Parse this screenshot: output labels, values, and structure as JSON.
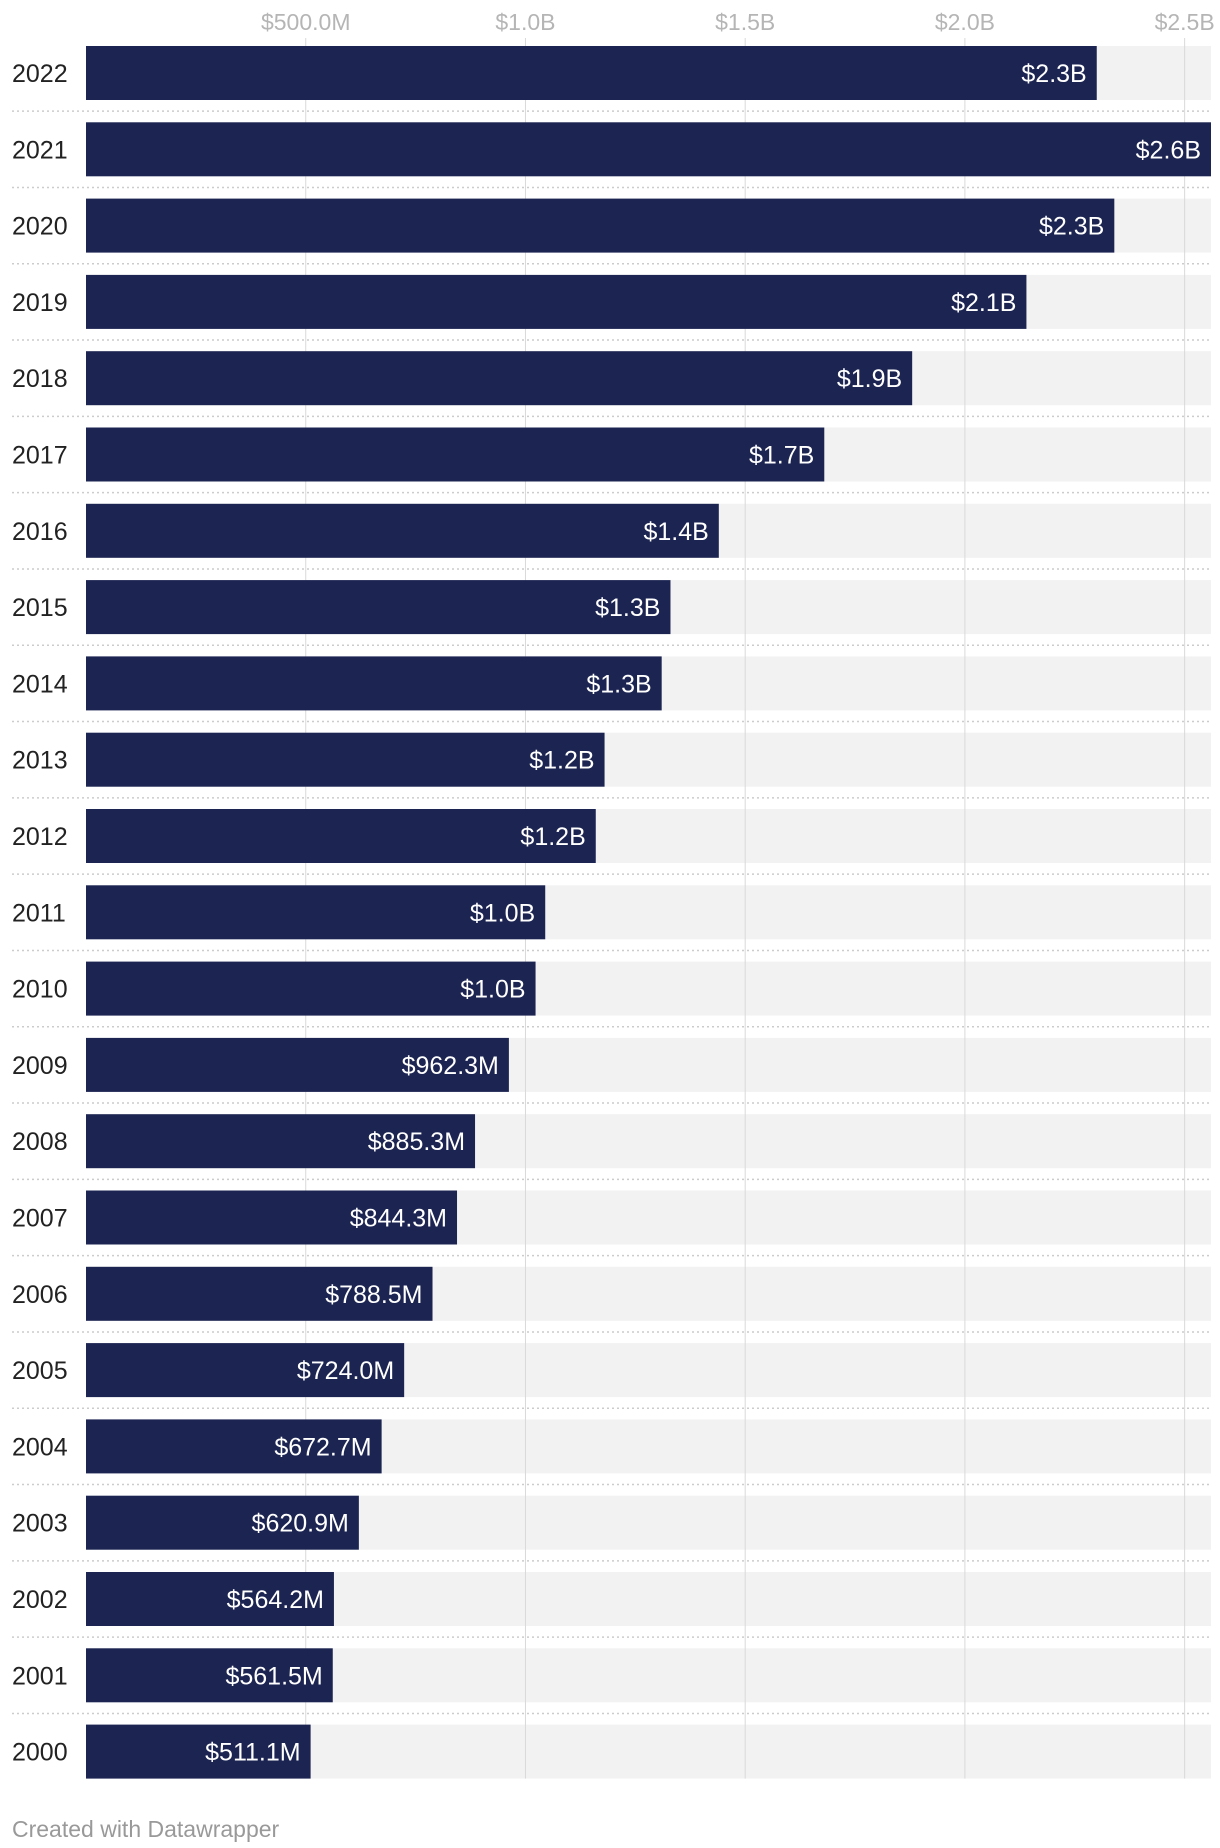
{
  "chart_data": {
    "type": "bar",
    "orientation": "horizontal",
    "title": "",
    "xlabel": "",
    "ylabel": "",
    "categories": [
      "2022",
      "2021",
      "2020",
      "2019",
      "2018",
      "2017",
      "2016",
      "2015",
      "2014",
      "2013",
      "2012",
      "2011",
      "2010",
      "2009",
      "2008",
      "2007",
      "2006",
      "2005",
      "2004",
      "2003",
      "2002",
      "2001",
      "2000"
    ],
    "values": [
      2300000000,
      2560000000,
      2340000000,
      2140000000,
      1880000000,
      1680000000,
      1440000000,
      1330000000,
      1310000000,
      1180000000,
      1160000000,
      1045000000,
      1023000000,
      962300000,
      885300000,
      844300000,
      788500000,
      724000000,
      672700000,
      620900000,
      564200000,
      561500000,
      511100000
    ],
    "value_labels": [
      "$2.3B",
      "$2.6B",
      "$2.3B",
      "$2.1B",
      "$1.9B",
      "$1.7B",
      "$1.4B",
      "$1.3B",
      "$1.3B",
      "$1.2B",
      "$1.2B",
      "$1.0B",
      "$1.0B",
      "$962.3M",
      "$885.3M",
      "$844.3M",
      "$788.5M",
      "$724.0M",
      "$672.7M",
      "$620.9M",
      "$564.2M",
      "$561.5M",
      "$511.1M"
    ],
    "x_ticks": [
      {
        "value": 500000000,
        "label": "$500.0M"
      },
      {
        "value": 1000000000,
        "label": "$1.0B"
      },
      {
        "value": 1500000000,
        "label": "$1.5B"
      },
      {
        "value": 2000000000,
        "label": "$2.0B"
      },
      {
        "value": 2500000000,
        "label": "$2.5B"
      }
    ],
    "xlim": [
      0,
      2560000000
    ],
    "grid": true,
    "legend": "none",
    "colors": {
      "bar": "#1c2452",
      "track": "#f2f2f2",
      "grid": "#d9d9d9",
      "separator": "#cccccc"
    }
  },
  "footer": {
    "credit": "Created with Datawrapper"
  }
}
